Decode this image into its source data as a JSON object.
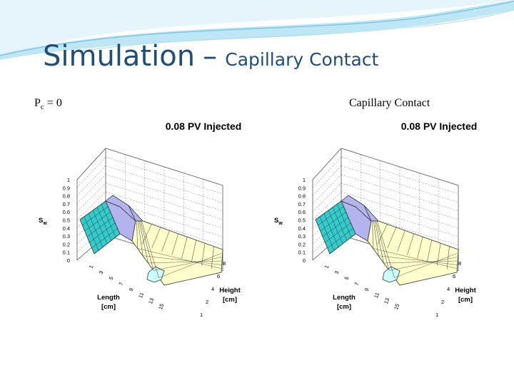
{
  "slide": {
    "title_main": "Simulation",
    "title_separator": "–",
    "title_sub": "Capillary Contact"
  },
  "panels": [
    {
      "caption_main": "P",
      "caption_subscript": "c",
      "caption_rest": " = 0",
      "chart_title": "0.08 PV Injected",
      "z_label": "S",
      "z_label_sub": "w",
      "x_label_line1": "Length",
      "x_label_line2": "[cm]",
      "y_label_line1": "Height",
      "y_label_line2": "[cm]",
      "z_ticks": [
        "1",
        "0.9",
        "0.8",
        "0.7",
        "0.6",
        "0.5",
        "0.4",
        "0.3",
        "0.2",
        "0.1",
        "0"
      ],
      "length_ticks": [
        "1",
        "3",
        "5",
        "7",
        "9",
        "11",
        "13",
        "15"
      ],
      "height_ticks": [
        "8",
        "6",
        "4",
        "2",
        "1"
      ]
    },
    {
      "caption": "Capillary Contact",
      "chart_title": "0.08 PV Injected",
      "z_label": "S",
      "z_label_sub": "w",
      "x_label_line1": "Length",
      "x_label_line2": "[cm]",
      "y_label_line1": "Height",
      "y_label_line2": "[cm]",
      "z_ticks": [
        "1",
        "0.9",
        "0.8",
        "0.7",
        "0.6",
        "0.5",
        "0.4",
        "0.3",
        "0.2",
        "0.1",
        "0"
      ],
      "length_ticks": [
        "1",
        "3",
        "5",
        "7",
        "9",
        "11",
        "13",
        "15"
      ],
      "height_ticks": [
        "8",
        "6",
        "4",
        "2",
        "1"
      ]
    }
  ],
  "colors": {
    "title": "#1f4e79",
    "swoosh_light": "#c9e9f6",
    "swoosh_dark": "#5fb8de",
    "surface_cyan": "#33cccc",
    "surface_lavender": "#b3b3ee",
    "surface_yellow": "#ffffcc",
    "surface_light_cyan": "#ccffff"
  }
}
